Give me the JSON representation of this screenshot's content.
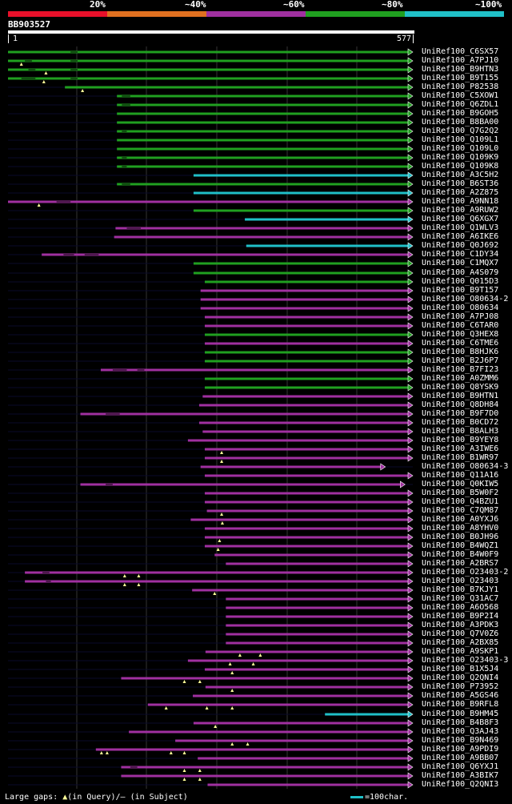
{
  "scale": {
    "labels": [
      "20%",
      "~40%",
      "~60%",
      "~80%",
      "~100%"
    ],
    "colors": [
      "#e8102a",
      "#e07020",
      "#a030a0",
      "#20a020",
      "#20c0c8"
    ]
  },
  "query": {
    "name": "BB903527",
    "start": "1",
    "end": "577",
    "length": 577
  },
  "legend": {
    "gaps_text": "Large gaps: ",
    "in_query": "(in Query)/",
    "dash": "–",
    "in_subject": " (in Subject)",
    "scale_text": "=100char."
  },
  "hits": [
    {
      "label": "UniRef100_C6SX57",
      "s": 1,
      "e": 577,
      "c": "green",
      "tri": [],
      "gaps": [
        [
          90,
          100
        ]
      ]
    },
    {
      "label": "UniRef100_A7PJ10",
      "s": 1,
      "e": 577,
      "c": "green",
      "tri": [
        20
      ],
      "gaps": [
        [
          25,
          35
        ],
        [
          90,
          100
        ]
      ]
    },
    {
      "label": "UniRef100_B9HTN3",
      "s": 1,
      "e": 577,
      "c": "green",
      "tri": [
        55
      ],
      "gaps": [
        [
          30,
          40
        ],
        [
          90,
          100
        ]
      ]
    },
    {
      "label": "UniRef100_B9T155",
      "s": 1,
      "e": 577,
      "c": "green",
      "tri": [
        52
      ],
      "gaps": [
        [
          20,
          40
        ],
        [
          90,
          100
        ]
      ]
    },
    {
      "label": "UniRef100_P82538",
      "s": 82,
      "e": 577,
      "c": "green",
      "tri": [
        107
      ],
      "gaps": []
    },
    {
      "label": "UniRef100_C5XOW1",
      "s": 156,
      "e": 577,
      "c": "green",
      "tri": [],
      "gaps": [
        [
          163,
          175
        ]
      ]
    },
    {
      "label": "UniRef100_Q6ZDL1",
      "s": 156,
      "e": 577,
      "c": "green",
      "tri": [],
      "gaps": [
        [
          163,
          175
        ]
      ]
    },
    {
      "label": "UniRef100_B9GOH5",
      "s": 156,
      "e": 577,
      "c": "green",
      "tri": [],
      "gaps": []
    },
    {
      "label": "UniRef100_B8BA00",
      "s": 156,
      "e": 577,
      "c": "green",
      "tri": [],
      "gaps": []
    },
    {
      "label": "UniRef100_Q7G2Q2",
      "s": 156,
      "e": 577,
      "c": "green",
      "tri": [],
      "gaps": [
        [
          163,
          170
        ]
      ]
    },
    {
      "label": "UniRef100_Q109L1",
      "s": 156,
      "e": 577,
      "c": "green",
      "tri": [],
      "gaps": []
    },
    {
      "label": "UniRef100_Q109L0",
      "s": 156,
      "e": 577,
      "c": "green",
      "tri": [],
      "gaps": []
    },
    {
      "label": "UniRef100_Q109K9",
      "s": 156,
      "e": 577,
      "c": "green",
      "tri": [],
      "gaps": [
        [
          163,
          170
        ]
      ]
    },
    {
      "label": "UniRef100_Q109K8",
      "s": 156,
      "e": 577,
      "c": "green",
      "tri": [],
      "gaps": [
        [
          163,
          170
        ]
      ]
    },
    {
      "label": "UniRef100_A3C5H2",
      "s": 265,
      "e": 577,
      "c": "cyan",
      "tri": [],
      "gaps": []
    },
    {
      "label": "UniRef100_B6ST36",
      "s": 156,
      "e": 577,
      "c": "green",
      "tri": [],
      "gaps": [
        [
          163,
          175
        ]
      ]
    },
    {
      "label": "UniRef100_A2Z875",
      "s": 265,
      "e": 577,
      "c": "cyan",
      "tri": [],
      "gaps": []
    },
    {
      "label": "UniRef100_A9NN18",
      "s": 1,
      "e": 577,
      "c": "magenta",
      "tri": [
        45
      ],
      "gaps": [
        [
          70,
          90
        ]
      ]
    },
    {
      "label": "UniRef100_A9RUW2",
      "s": 265,
      "e": 577,
      "c": "green",
      "tri": [],
      "gaps": []
    },
    {
      "label": "UniRef100_Q6XGX7",
      "s": 338,
      "e": 577,
      "c": "cyan",
      "tri": [],
      "gaps": []
    },
    {
      "label": "UniRef100_Q1WLV3",
      "s": 154,
      "e": 577,
      "c": "magenta",
      "tri": [],
      "gaps": [
        [
          170,
          190
        ]
      ]
    },
    {
      "label": "UniRef100_A6IKE6",
      "s": 152,
      "e": 577,
      "c": "magenta",
      "tri": [],
      "gaps": []
    },
    {
      "label": "UniRef100_Q0J692",
      "s": 340,
      "e": 577,
      "c": "cyan",
      "tri": [],
      "gaps": []
    },
    {
      "label": "UniRef100_C1DY34",
      "s": 49,
      "e": 577,
      "c": "magenta",
      "tri": [],
      "gaps": [
        [
          80,
          95
        ],
        [
          110,
          130
        ]
      ]
    },
    {
      "label": "UniRef100_C1MQX7",
      "s": 265,
      "e": 577,
      "c": "green",
      "tri": [],
      "gaps": []
    },
    {
      "label": "UniRef100_A4S079",
      "s": 265,
      "e": 577,
      "c": "green",
      "tri": [],
      "gaps": []
    },
    {
      "label": "UniRef100_Q015D3",
      "s": 281,
      "e": 577,
      "c": "green",
      "tri": [],
      "gaps": []
    },
    {
      "label": "UniRef100_B9T157",
      "s": 275,
      "e": 577,
      "c": "magenta",
      "tri": [],
      "gaps": []
    },
    {
      "label": "UniRef100_O80634-2",
      "s": 275,
      "e": 577,
      "c": "magenta",
      "tri": [],
      "gaps": []
    },
    {
      "label": "UniRef100_O80634",
      "s": 275,
      "e": 577,
      "c": "magenta",
      "tri": [],
      "gaps": []
    },
    {
      "label": "UniRef100_A7PJ08",
      "s": 281,
      "e": 577,
      "c": "magenta",
      "tri": [],
      "gaps": []
    },
    {
      "label": "UniRef100_C6TAR0",
      "s": 281,
      "e": 577,
      "c": "magenta",
      "tri": [],
      "gaps": []
    },
    {
      "label": "UniRef100_Q3HEX8",
      "s": 281,
      "e": 577,
      "c": "green",
      "tri": [],
      "gaps": []
    },
    {
      "label": "UniRef100_C6TME6",
      "s": 281,
      "e": 577,
      "c": "magenta",
      "tri": [],
      "gaps": []
    },
    {
      "label": "UniRef100_B8HJK6",
      "s": 281,
      "e": 577,
      "c": "green",
      "tri": [],
      "gaps": []
    },
    {
      "label": "UniRef100_B2J6P7",
      "s": 281,
      "e": 577,
      "c": "green",
      "tri": [],
      "gaps": []
    },
    {
      "label": "UniRef100_B7FI23",
      "s": 133,
      "e": 577,
      "c": "magenta",
      "tri": [],
      "gaps": [
        [
          150,
          170
        ],
        [
          185,
          195
        ]
      ]
    },
    {
      "label": "UniRef100_A0ZMM6",
      "s": 281,
      "e": 577,
      "c": "green",
      "tri": [],
      "gaps": []
    },
    {
      "label": "UniRef100_Q8YSK9",
      "s": 281,
      "e": 577,
      "c": "green",
      "tri": [],
      "gaps": []
    },
    {
      "label": "UniRef100_B9HTN1",
      "s": 278,
      "e": 577,
      "c": "magenta",
      "tri": [],
      "gaps": []
    },
    {
      "label": "UniRef100_Q8DH84",
      "s": 273,
      "e": 577,
      "c": "magenta",
      "tri": [],
      "gaps": []
    },
    {
      "label": "UniRef100_B9F7D0",
      "s": 104,
      "e": 577,
      "c": "magenta",
      "tri": [],
      "gaps": [
        [
          140,
          160
        ]
      ]
    },
    {
      "label": "UniRef100_B0CD72",
      "s": 273,
      "e": 577,
      "c": "magenta",
      "tri": [],
      "gaps": []
    },
    {
      "label": "UniRef100_B8ALH3",
      "s": 278,
      "e": 577,
      "c": "magenta",
      "tri": [],
      "gaps": []
    },
    {
      "label": "UniRef100_B9YEY8",
      "s": 257,
      "e": 577,
      "c": "magenta",
      "tri": [],
      "gaps": []
    },
    {
      "label": "UniRef100_A3IWE6",
      "s": 281,
      "e": 577,
      "c": "magenta",
      "tri": [
        305
      ],
      "gaps": []
    },
    {
      "label": "UniRef100_B1WR97",
      "s": 281,
      "e": 577,
      "c": "magenta",
      "tri": [
        305
      ],
      "gaps": []
    },
    {
      "label": "UniRef100_O80634-3",
      "s": 275,
      "e": 538,
      "c": "magenta",
      "tri": [],
      "gaps": []
    },
    {
      "label": "UniRef100_Q11A16",
      "s": 281,
      "e": 577,
      "c": "magenta",
      "tri": [],
      "gaps": []
    },
    {
      "label": "UniRef100_Q0KIW5",
      "s": 104,
      "e": 566,
      "c": "magenta",
      "tri": [],
      "gaps": [
        [
          140,
          150
        ]
      ]
    },
    {
      "label": "UniRef100_B5W0F2",
      "s": 281,
      "e": 577,
      "c": "magenta",
      "tri": [],
      "gaps": []
    },
    {
      "label": "UniRef100_Q4BZU1",
      "s": 281,
      "e": 577,
      "c": "magenta",
      "tri": [],
      "gaps": []
    },
    {
      "label": "UniRef100_C7QM87",
      "s": 284,
      "e": 577,
      "c": "magenta",
      "tri": [
        305
      ],
      "gaps": []
    },
    {
      "label": "UniRef100_A0YXJ6",
      "s": 261,
      "e": 577,
      "c": "magenta",
      "tri": [
        306
      ],
      "gaps": []
    },
    {
      "label": "UniRef100_A8YHV0",
      "s": 281,
      "e": 577,
      "c": "magenta",
      "tri": [],
      "gaps": []
    },
    {
      "label": "UniRef100_B0JH96",
      "s": 281,
      "e": 577,
      "c": "magenta",
      "tri": [
        302
      ],
      "gaps": []
    },
    {
      "label": "UniRef100_B4WQZ1",
      "s": 281,
      "e": 577,
      "c": "magenta",
      "tri": [
        300
      ],
      "gaps": []
    },
    {
      "label": "UniRef100_B4W0F9",
      "s": 295,
      "e": 577,
      "c": "magenta",
      "tri": [],
      "gaps": []
    },
    {
      "label": "UniRef100_A2BRS7",
      "s": 311,
      "e": 577,
      "c": "magenta",
      "tri": [],
      "gaps": []
    },
    {
      "label": "UniRef100_O23403-2",
      "s": 25,
      "e": 577,
      "c": "magenta",
      "tri": [
        167,
        187
      ],
      "gaps": [
        [
          50,
          60
        ]
      ]
    },
    {
      "label": "UniRef100_O23403",
      "s": 25,
      "e": 577,
      "c": "magenta",
      "tri": [
        167,
        187
      ],
      "gaps": [
        [
          55,
          62
        ]
      ]
    },
    {
      "label": "UniRef100_B7KJY1",
      "s": 263,
      "e": 577,
      "c": "magenta",
      "tri": [
        295
      ],
      "gaps": []
    },
    {
      "label": "UniRef100_Q31AC7",
      "s": 311,
      "e": 577,
      "c": "magenta",
      "tri": [],
      "gaps": []
    },
    {
      "label": "UniRef100_A6O568",
      "s": 311,
      "e": 577,
      "c": "magenta",
      "tri": [],
      "gaps": []
    },
    {
      "label": "UniRef100_B9P2I4",
      "s": 311,
      "e": 577,
      "c": "magenta",
      "tri": [],
      "gaps": []
    },
    {
      "label": "UniRef100_A3PDK3",
      "s": 311,
      "e": 577,
      "c": "magenta",
      "tri": [],
      "gaps": []
    },
    {
      "label": "UniRef100_Q7V0Z6",
      "s": 311,
      "e": 577,
      "c": "magenta",
      "tri": [],
      "gaps": []
    },
    {
      "label": "UniRef100_A2BX85",
      "s": 311,
      "e": 577,
      "c": "magenta",
      "tri": [],
      "gaps": []
    },
    {
      "label": "UniRef100_A9SKP1",
      "s": 282,
      "e": 577,
      "c": "magenta",
      "tri": [
        331,
        360
      ],
      "gaps": []
    },
    {
      "label": "UniRef100_O23403-3",
      "s": 257,
      "e": 577,
      "c": "magenta",
      "tri": [
        317,
        350
      ],
      "gaps": []
    },
    {
      "label": "UniRef100_B1X5J4",
      "s": 281,
      "e": 577,
      "c": "magenta",
      "tri": [
        320
      ],
      "gaps": []
    },
    {
      "label": "UniRef100_Q2QNI4",
      "s": 162,
      "e": 577,
      "c": "magenta",
      "tri": [
        252,
        274
      ],
      "gaps": []
    },
    {
      "label": "UniRef100_P73952",
      "s": 282,
      "e": 577,
      "c": "magenta",
      "tri": [
        320
      ],
      "gaps": []
    },
    {
      "label": "UniRef100_A5GS46",
      "s": 264,
      "e": 577,
      "c": "magenta",
      "tri": [],
      "gaps": []
    },
    {
      "label": "UniRef100_B9RFL8",
      "s": 200,
      "e": 577,
      "c": "magenta",
      "tri": [
        226,
        284,
        320
      ],
      "gaps": []
    },
    {
      "label": "UniRef100_B9HM45",
      "s": 452,
      "e": 577,
      "c": "cyan",
      "tri": [],
      "gaps": []
    },
    {
      "label": "UniRef100_B4B8F3",
      "s": 265,
      "e": 577,
      "c": "magenta",
      "tri": [
        296
      ],
      "gaps": []
    },
    {
      "label": "UniRef100_Q3AJ43",
      "s": 173,
      "e": 577,
      "c": "magenta",
      "tri": [],
      "gaps": []
    },
    {
      "label": "UniRef100_B9N469",
      "s": 239,
      "e": 577,
      "c": "magenta",
      "tri": [
        320,
        342
      ],
      "gaps": []
    },
    {
      "label": "UniRef100_A9PDI9",
      "s": 126,
      "e": 577,
      "c": "magenta",
      "tri": [
        134,
        142,
        233,
        252
      ],
      "gaps": []
    },
    {
      "label": "UniRef100_A9BB07",
      "s": 271,
      "e": 577,
      "c": "magenta",
      "tri": [],
      "gaps": []
    },
    {
      "label": "UniRef100_Q6YXJ1",
      "s": 162,
      "e": 577,
      "c": "magenta",
      "tri": [
        252,
        274
      ],
      "gaps": [
        [
          175,
          185
        ]
      ]
    },
    {
      "label": "UniRef100_A3BIK7",
      "s": 162,
      "e": 577,
      "c": "magenta",
      "tri": [
        252,
        274
      ],
      "gaps": []
    },
    {
      "label": "UniRef100_Q2QNI3",
      "s": 285,
      "e": 577,
      "c": "magenta",
      "tri": [],
      "gaps": []
    }
  ]
}
